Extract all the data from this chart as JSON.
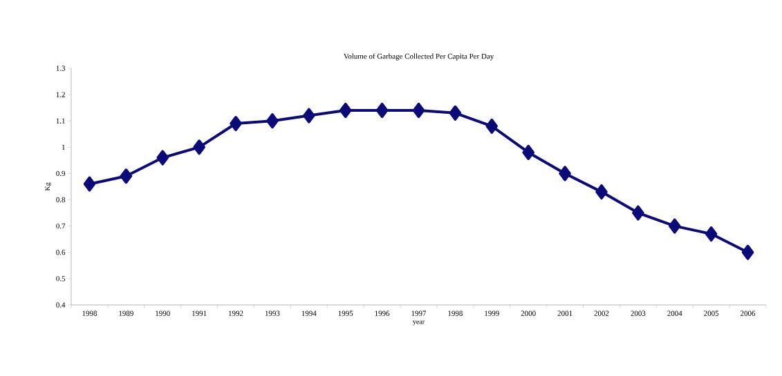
{
  "chart_data": {
    "type": "line",
    "title": "Volume of Garbage Collected Per Capita Per Day",
    "xlabel": "year",
    "ylabel": "Kg",
    "categories": [
      "1998",
      "1989",
      "1990",
      "1991",
      "1992",
      "1993",
      "1994",
      "1995",
      "1996",
      "1997",
      "1998",
      "1999",
      "2000",
      "2001",
      "2002",
      "2003",
      "2004",
      "2005",
      "2006"
    ],
    "values": [
      0.86,
      0.89,
      0.96,
      1.0,
      1.09,
      1.1,
      1.12,
      1.14,
      1.14,
      1.14,
      1.13,
      1.08,
      0.98,
      0.9,
      0.83,
      0.75,
      0.7,
      0.67,
      0.6
    ],
    "color": "#0a0a78",
    "marker": "diamond",
    "line_style": "solid",
    "ylim": [
      0.4,
      1.3
    ],
    "yticks": [
      0.4,
      0.5,
      0.6,
      0.7,
      0.8,
      0.9,
      1,
      1.1,
      1.2,
      1.3
    ]
  }
}
